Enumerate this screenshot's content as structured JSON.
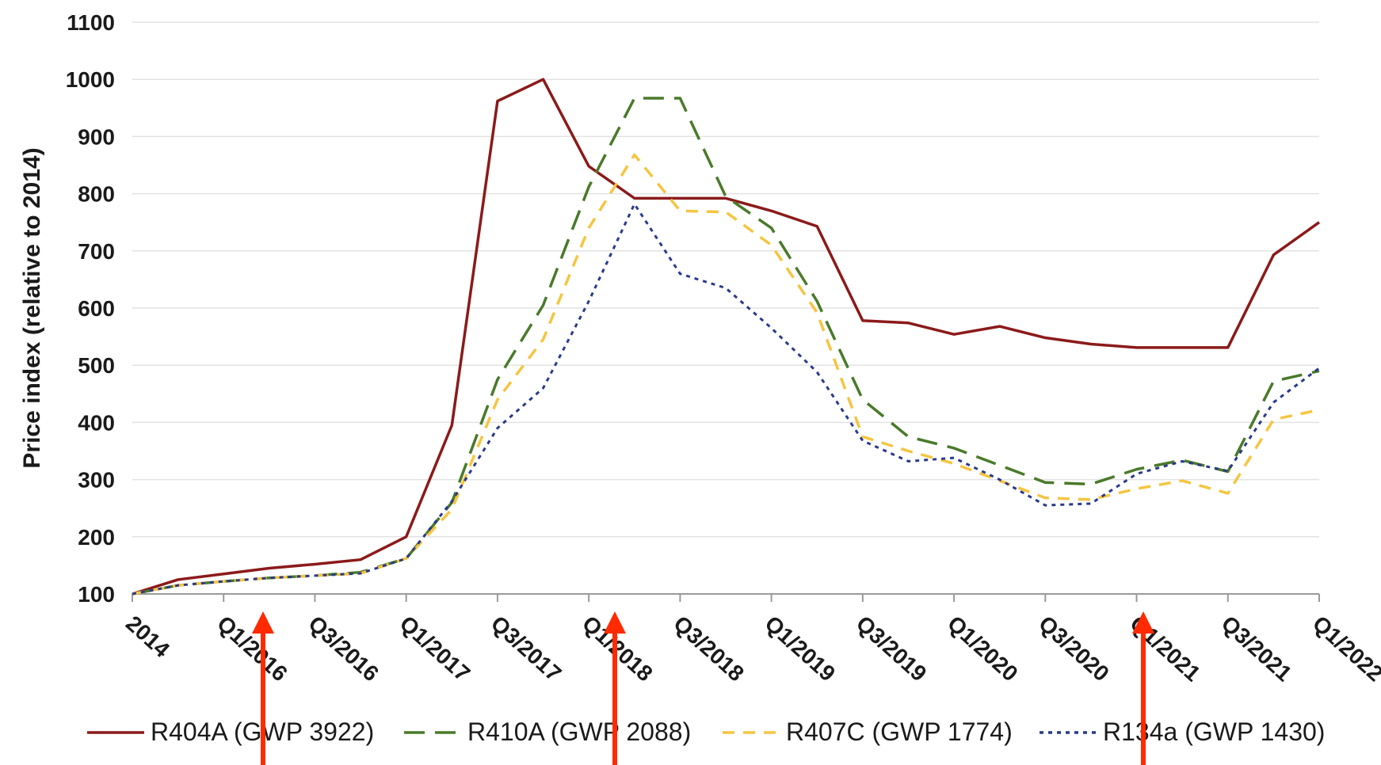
{
  "chart_data": {
    "type": "line",
    "ylabel": "Price index (relative to 2014)",
    "ylim": [
      100,
      1100
    ],
    "yticks": [
      100,
      200,
      300,
      400,
      500,
      600,
      700,
      800,
      900,
      1000,
      1100
    ],
    "x_tick_labels": [
      "2014",
      "Q1/2016",
      "Q3/2016",
      "Q1/2017",
      "Q3/2017",
      "Q1/2018",
      "Q3/2018",
      "Q1/2019",
      "Q3/2019",
      "Q1/2020",
      "Q3/2020",
      "Q1/2021",
      "Q3/2021",
      "Q1/2022"
    ],
    "x": [
      0,
      1,
      2,
      3,
      4,
      5,
      6,
      7,
      8,
      9,
      10,
      11,
      12,
      13,
      14,
      15,
      16,
      17,
      18,
      19,
      20,
      21,
      22,
      23,
      24,
      25,
      26
    ],
    "grid": true,
    "legend_position": "bottom",
    "series": [
      {
        "name": "R404A (GWP 3922)",
        "color": "#8b1a1a",
        "dash": "solid",
        "values": [
          100,
          125,
          135,
          145,
          152,
          160,
          200,
          395,
          962,
          1000,
          848,
          792,
          792,
          792,
          770,
          743,
          578,
          574,
          554,
          568,
          548,
          537,
          531,
          531,
          531,
          693,
          750
        ]
      },
      {
        "name": "R410A (GWP 2088)",
        "color": "#4a7a2a",
        "dash": "long",
        "values": [
          100,
          115,
          122,
          128,
          132,
          138,
          162,
          260,
          475,
          605,
          812,
          967,
          967,
          795,
          740,
          612,
          440,
          375,
          355,
          325,
          295,
          292,
          318,
          334,
          314,
          472,
          490
        ]
      },
      {
        "name": "R407C (GWP 1774)",
        "color": "#f5c542",
        "dash": "short",
        "values": [
          100,
          115,
          122,
          128,
          132,
          136,
          162,
          248,
          440,
          545,
          740,
          868,
          770,
          768,
          710,
          592,
          375,
          350,
          328,
          298,
          268,
          265,
          284,
          298,
          276,
          405,
          422
        ]
      },
      {
        "name": "R134a (GWP 1430)",
        "color": "#2a3a8a",
        "dash": "dot",
        "values": [
          100,
          115,
          122,
          128,
          132,
          136,
          162,
          262,
          390,
          460,
          612,
          782,
          660,
          635,
          565,
          488,
          368,
          332,
          338,
          300,
          255,
          258,
          310,
          332,
          315,
          435,
          495
        ]
      }
    ]
  }
}
